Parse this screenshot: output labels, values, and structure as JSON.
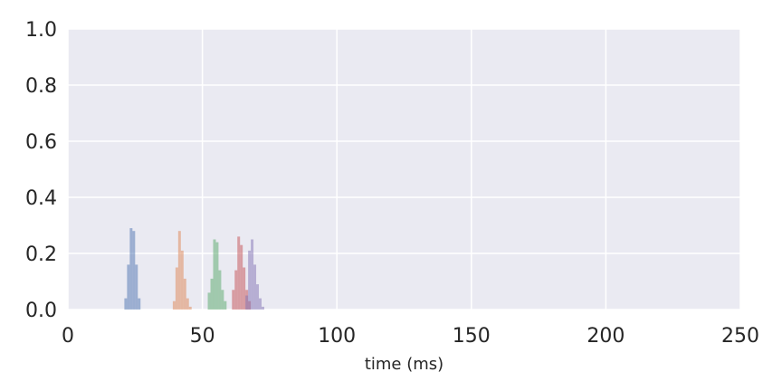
{
  "chart_data": {
    "type": "histogram",
    "xlabel": "time (ms)",
    "ylabel": "",
    "title": "",
    "xlim": [
      0,
      250
    ],
    "ylim": [
      0,
      1
    ],
    "xticks": [
      0,
      50,
      100,
      150,
      200,
      250
    ],
    "yticks": [
      0.0,
      0.2,
      0.4,
      0.6,
      0.8,
      1.0
    ],
    "xtick_labels": [
      "0",
      "50",
      "100",
      "150",
      "200",
      "250"
    ],
    "ytick_labels": [
      "0.0",
      "0.2",
      "0.4",
      "0.6",
      "0.8",
      "1.0"
    ],
    "grid": true,
    "background": "#eaeaf2",
    "series": [
      {
        "color": "#4c72b0",
        "alpha": 0.5,
        "bin_width": 1,
        "bins": [
          [
            21,
            0.04
          ],
          [
            22,
            0.16
          ],
          [
            23,
            0.29
          ],
          [
            24,
            0.28
          ],
          [
            25,
            0.16
          ],
          [
            26,
            0.04
          ]
        ]
      },
      {
        "color": "#dd8452",
        "alpha": 0.5,
        "bin_width": 1,
        "bins": [
          [
            39,
            0.03
          ],
          [
            40,
            0.15
          ],
          [
            41,
            0.28
          ],
          [
            42,
            0.21
          ],
          [
            43,
            0.11
          ],
          [
            44,
            0.04
          ],
          [
            45,
            0.01
          ]
        ]
      },
      {
        "color": "#55a868",
        "alpha": 0.5,
        "bin_width": 1,
        "bins": [
          [
            52,
            0.06
          ],
          [
            53,
            0.11
          ],
          [
            54,
            0.25
          ],
          [
            55,
            0.24
          ],
          [
            56,
            0.14
          ],
          [
            57,
            0.07
          ],
          [
            58,
            0.03
          ]
        ]
      },
      {
        "color": "#c44e52",
        "alpha": 0.5,
        "bin_width": 1,
        "bins": [
          [
            61,
            0.07
          ],
          [
            62,
            0.14
          ],
          [
            63,
            0.26
          ],
          [
            64,
            0.23
          ],
          [
            65,
            0.15
          ],
          [
            66,
            0.07
          ],
          [
            67,
            0.03
          ]
        ]
      },
      {
        "color": "#8172b3",
        "alpha": 0.5,
        "bin_width": 1,
        "bins": [
          [
            66,
            0.05
          ],
          [
            67,
            0.21
          ],
          [
            68,
            0.25
          ],
          [
            69,
            0.16
          ],
          [
            70,
            0.09
          ],
          [
            71,
            0.04
          ],
          [
            72,
            0.01
          ]
        ]
      }
    ]
  }
}
